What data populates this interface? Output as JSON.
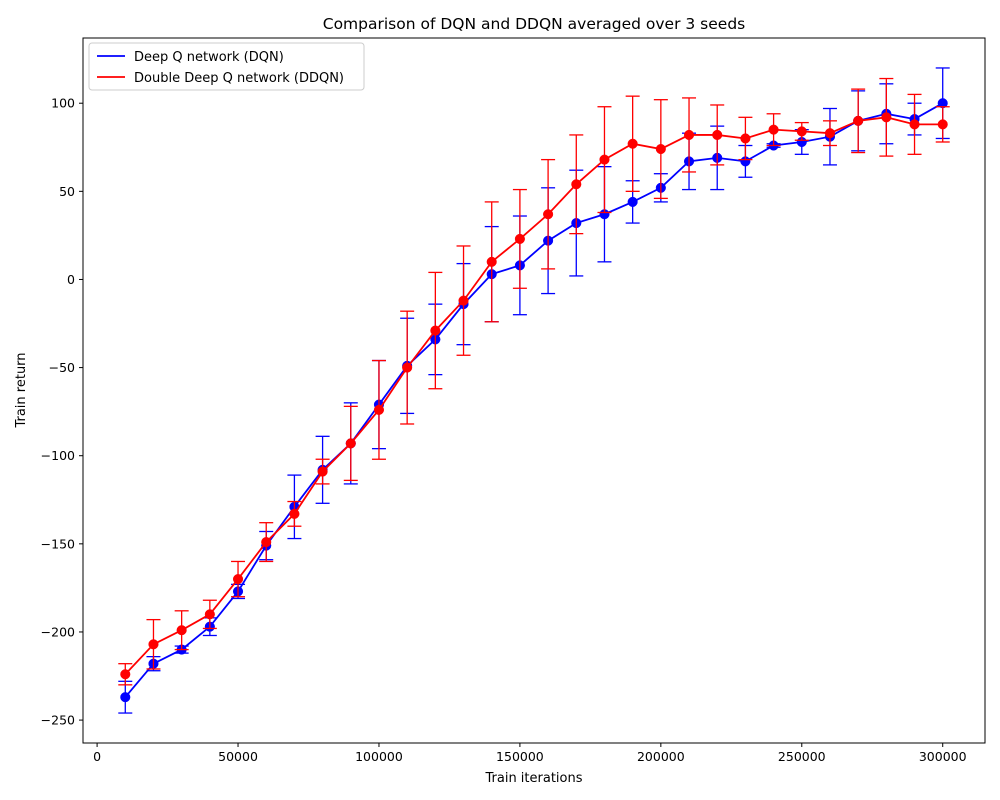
{
  "chart_data": {
    "type": "line",
    "title": "Comparison of DQN and DDQN averaged over 3 seeds",
    "xlabel": "Train iterations",
    "ylabel": "Train return",
    "xlim": [
      -5000,
      315000
    ],
    "ylim": [
      -263,
      137
    ],
    "xticks": [
      0,
      50000,
      100000,
      150000,
      200000,
      250000,
      300000
    ],
    "xtick_labels": [
      "0",
      "50000",
      "100000",
      "150000",
      "200000",
      "250000",
      "300000"
    ],
    "yticks": [
      -250,
      -200,
      -150,
      -100,
      -50,
      0,
      50,
      100
    ],
    "ytick_labels": [
      "−250",
      "−200",
      "−150",
      "−100",
      "−50",
      "0",
      "50",
      "100"
    ],
    "grid": false,
    "legend_position": "top-left",
    "x": [
      10000,
      20000,
      30000,
      40000,
      50000,
      60000,
      70000,
      80000,
      90000,
      100000,
      110000,
      120000,
      130000,
      140000,
      150000,
      160000,
      170000,
      180000,
      190000,
      200000,
      210000,
      220000,
      230000,
      240000,
      250000,
      260000,
      270000,
      280000,
      290000,
      300000
    ],
    "series": [
      {
        "name": "Deep Q network (DQN)",
        "color": "#0000ff",
        "values": [
          -237,
          -218,
          -210,
          -197,
          -177,
          -151,
          -129,
          -108,
          -93,
          -71,
          -49,
          -34,
          -14,
          3,
          8,
          22,
          32,
          37,
          44,
          52,
          67,
          69,
          67,
          76,
          78,
          81,
          90,
          94,
          91,
          100
        ],
        "err": [
          9,
          4,
          2,
          5,
          4,
          8,
          18,
          19,
          23,
          25,
          27,
          20,
          23,
          27,
          28,
          30,
          30,
          27,
          12,
          8,
          16,
          18,
          9,
          1,
          7,
          16,
          17,
          17,
          9,
          20
        ]
      },
      {
        "name": "Double Deep Q network (DDQN)",
        "color": "#ff0000",
        "values": [
          -224,
          -207,
          -199,
          -190,
          -170,
          -149,
          -133,
          -109,
          -93,
          -74,
          -50,
          -29,
          -12,
          10,
          23,
          37,
          54,
          68,
          77,
          74,
          82,
          82,
          80,
          85,
          84,
          83,
          90,
          92,
          88,
          88
        ],
        "err": [
          6,
          14,
          11,
          8,
          10,
          11,
          7,
          7,
          21,
          28,
          32,
          33,
          31,
          34,
          28,
          31,
          28,
          30,
          27,
          28,
          21,
          17,
          12,
          9,
          5,
          7,
          18,
          22,
          17,
          10
        ]
      }
    ]
  }
}
